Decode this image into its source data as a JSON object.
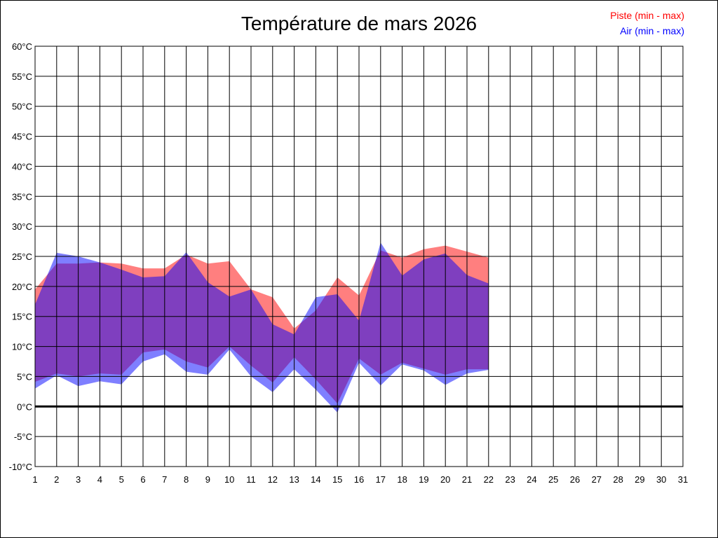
{
  "chart_data": {
    "type": "area",
    "title": "Température de mars 2026",
    "x_ticks": [
      "1",
      "2",
      "3",
      "4",
      "5",
      "6",
      "7",
      "8",
      "9",
      "10",
      "11",
      "12",
      "13",
      "14",
      "15",
      "16",
      "17",
      "18",
      "19",
      "20",
      "21",
      "22",
      "23",
      "24",
      "25",
      "26",
      "27",
      "28",
      "29",
      "30",
      "31"
    ],
    "y_ticks": [
      "60°C",
      "55°C",
      "50°C",
      "45°C",
      "40°C",
      "35°C",
      "30°C",
      "25°C",
      "20°C",
      "15°C",
      "10°C",
      "5°C",
      "0°C",
      "-5°C",
      "-10°C"
    ],
    "xlim": [
      1,
      31
    ],
    "ylim": [
      -10,
      60
    ],
    "grid": true,
    "legend_position": "top-right",
    "series": [
      {
        "name": "Piste (min - max)",
        "color": "#ff0000",
        "x": [
          1,
          2,
          3,
          4,
          5,
          6,
          7,
          8,
          9,
          10,
          11,
          12,
          13,
          14,
          15,
          16,
          17,
          18,
          19,
          20,
          21,
          22
        ],
        "min": [
          4.1,
          5.5,
          5.0,
          5.5,
          5.3,
          9.0,
          9.5,
          7.5,
          6.5,
          10.0,
          6.8,
          4.0,
          8.2,
          4.5,
          0.5,
          8.0,
          5.3,
          7.3,
          6.3,
          5.3,
          6.2,
          6.2
        ],
        "max": [
          19.5,
          23.8,
          23.8,
          24.0,
          23.8,
          23.0,
          23.0,
          25.3,
          23.8,
          24.2,
          19.5,
          18.2,
          13.0,
          16.0,
          21.5,
          18.5,
          26.0,
          24.8,
          26.2,
          26.8,
          25.8,
          24.8
        ]
      },
      {
        "name": "Air (min - max)",
        "color": "#0000ff",
        "x": [
          1,
          2,
          3,
          4,
          5,
          6,
          7,
          8,
          9,
          10,
          11,
          12,
          13,
          14,
          15,
          16,
          17,
          18,
          19,
          20,
          21,
          22
        ],
        "min": [
          3.0,
          5.2,
          3.4,
          4.2,
          3.7,
          7.5,
          8.7,
          5.8,
          5.3,
          9.5,
          5.0,
          2.4,
          6.2,
          2.8,
          -1.0,
          7.3,
          3.5,
          7.0,
          6.0,
          3.6,
          5.5,
          6.1
        ],
        "max": [
          17.0,
          25.6,
          25.0,
          24.0,
          22.8,
          21.5,
          21.7,
          25.7,
          20.7,
          18.3,
          19.5,
          13.7,
          12.0,
          18.2,
          18.7,
          14.3,
          27.3,
          21.8,
          24.5,
          25.5,
          21.9,
          20.5
        ]
      }
    ]
  }
}
